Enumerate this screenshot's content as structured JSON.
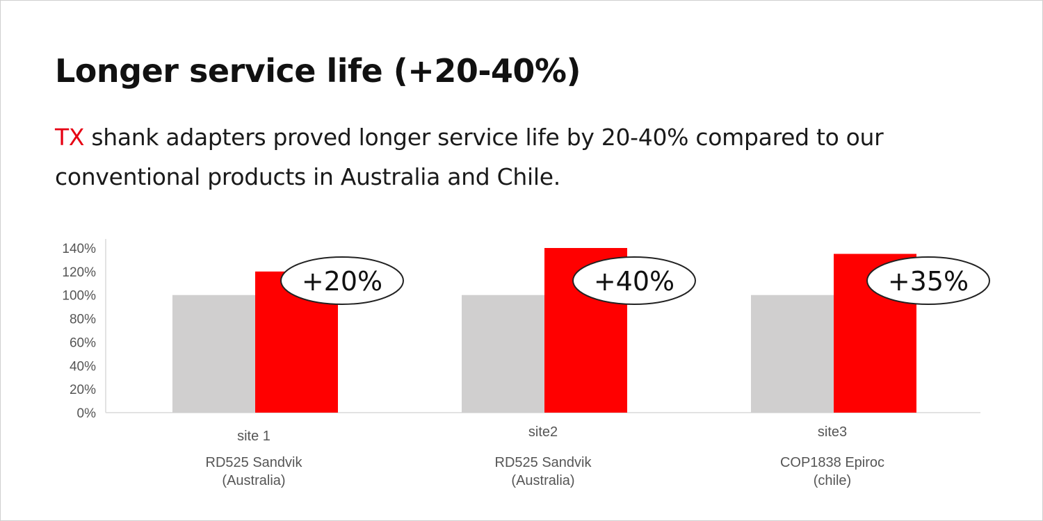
{
  "title": "Longer service life (+20-40%)",
  "subtitle": {
    "highlight": "TX",
    "text": " shank adapters proved longer service life by 20-40% compared to our conventional products in Australia and Chile."
  },
  "colors": {
    "baseline_bar": "#d0cfcf",
    "tx_bar": "#ff0000",
    "highlight_text": "#e60012"
  },
  "chart_data": {
    "type": "bar",
    "y_ticks": [
      "0%",
      "20%",
      "40%",
      "60%",
      "80%",
      "100%",
      "120%",
      "140%"
    ],
    "ylim": [
      0,
      140
    ],
    "grid": false,
    "categories": [
      {
        "site": "site 1",
        "machine": "RD525 Sandvik",
        "region": "(Australia)"
      },
      {
        "site": "site2",
        "machine": "RD525 Sandvik",
        "region": "(Australia)"
      },
      {
        "site": "site3",
        "machine": "COP1838 Epiroc",
        "region": "(chile)"
      }
    ],
    "series": [
      {
        "values": [
          100,
          100,
          100
        ],
        "color": "#d0cfcf"
      },
      {
        "values": [
          120,
          140,
          135
        ],
        "color": "#ff0000"
      }
    ],
    "annotations": [
      "+20%",
      "+40%",
      "+35%"
    ]
  }
}
